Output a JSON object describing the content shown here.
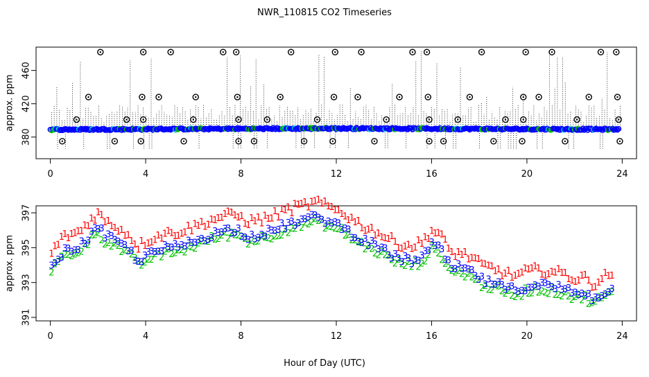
{
  "title": "NWR_110815  CO2 Timeseries",
  "xlabel": "Hour of Day (UTC)",
  "colors": {
    "level1": "#ff0000",
    "level2": "#00c000",
    "level3": "#0000ff",
    "cyan": "#00cccc",
    "ink": "#000000"
  },
  "chart_data": [
    {
      "type": "scatter",
      "title": "",
      "ylabel": "approx. ppm",
      "xlim": [
        -0.6,
        24.6
      ],
      "ylim": [
        354,
        488
      ],
      "xticks": [
        "0",
        "4",
        "8",
        "12",
        "16",
        "20",
        "24"
      ],
      "yticks": [
        "380",
        "420",
        "460"
      ],
      "xtick_values": [
        0,
        4,
        8,
        12,
        16,
        20,
        24
      ],
      "ytick_values": [
        380,
        420,
        460
      ],
      "grid": false,
      "series": [
        {
          "marker": "circle-outline",
          "points": [
            [
              0.5,
              375
            ],
            [
              1.1,
              401
            ],
            [
              1.6,
              428
            ],
            [
              2.1,
              482
            ],
            [
              2.7,
              375
            ],
            [
              3.2,
              401
            ],
            [
              3.8,
              375
            ],
            [
              3.85,
              428
            ],
            [
              3.9,
              401
            ],
            [
              3.9,
              482
            ],
            [
              4.55,
              428
            ],
            [
              5.05,
              482
            ],
            [
              5.6,
              375
            ],
            [
              6.1,
              428
            ],
            [
              6.0,
              401
            ],
            [
              7.25,
              482
            ],
            [
              7.8,
              482
            ],
            [
              7.85,
              428
            ],
            [
              7.9,
              401
            ],
            [
              7.9,
              375
            ],
            [
              8.55,
              375
            ],
            [
              9.1,
              401
            ],
            [
              9.65,
              428
            ],
            [
              10.1,
              482
            ],
            [
              10.65,
              375
            ],
            [
              11.2,
              401
            ],
            [
              11.85,
              375
            ],
            [
              11.9,
              428
            ],
            [
              11.95,
              482
            ],
            [
              12.9,
              428
            ],
            [
              13.05,
              482
            ],
            [
              13.6,
              375
            ],
            [
              14.1,
              401
            ],
            [
              14.65,
              428
            ],
            [
              15.2,
              482
            ],
            [
              15.8,
              482
            ],
            [
              15.85,
              428
            ],
            [
              15.9,
              401
            ],
            [
              15.9,
              375
            ],
            [
              16.5,
              375
            ],
            [
              17.1,
              401
            ],
            [
              17.6,
              428
            ],
            [
              18.1,
              482
            ],
            [
              18.6,
              375
            ],
            [
              19.1,
              401
            ],
            [
              19.8,
              375
            ],
            [
              19.85,
              428
            ],
            [
              19.85,
              401
            ],
            [
              19.95,
              482
            ],
            [
              20.5,
              428
            ],
            [
              21.05,
              482
            ],
            [
              21.6,
              375
            ],
            [
              22.1,
              401
            ],
            [
              22.6,
              428
            ],
            [
              23.1,
              482
            ],
            [
              23.75,
              482
            ],
            [
              23.8,
              428
            ],
            [
              23.85,
              401
            ],
            [
              23.9,
              375
            ]
          ]
        }
      ]
    },
    {
      "type": "scatter",
      "title": "",
      "ylabel": "approx. ppm",
      "xlim": [
        -0.6,
        24.6
      ],
      "ylim": [
        390.8,
        397.4
      ],
      "xticks": [
        "0",
        "4",
        "8",
        "12",
        "16",
        "20",
        "24"
      ],
      "yticks": [
        "391",
        "393",
        "395",
        "397"
      ],
      "xtick_values": [
        0,
        4,
        8,
        12,
        16,
        20,
        24
      ],
      "ytick_values": [
        391,
        393,
        395,
        397
      ],
      "grid": false,
      "series": [
        {
          "marker": "1",
          "color_key": "level1"
        },
        {
          "marker": "2",
          "color_key": "level2"
        },
        {
          "marker": "3",
          "color_key": "level3"
        }
      ],
      "baseline": [
        [
          0.0,
          393.6
        ],
        [
          0.3,
          394.4
        ],
        [
          0.7,
          394.8
        ],
        [
          1.2,
          395.0
        ],
        [
          1.7,
          395.7
        ],
        [
          2.0,
          396.1
        ],
        [
          2.3,
          395.6
        ],
        [
          2.8,
          395.3
        ],
        [
          3.3,
          394.8
        ],
        [
          3.7,
          394.2
        ],
        [
          4.2,
          394.6
        ],
        [
          4.8,
          394.9
        ],
        [
          5.4,
          395.0
        ],
        [
          6.0,
          395.3
        ],
        [
          6.6,
          395.6
        ],
        [
          7.2,
          395.9
        ],
        [
          7.8,
          396.0
        ],
        [
          8.3,
          395.6
        ],
        [
          8.8,
          395.7
        ],
        [
          9.3,
          395.9
        ],
        [
          9.8,
          396.2
        ],
        [
          10.3,
          396.4
        ],
        [
          10.8,
          396.6
        ],
        [
          11.3,
          396.7
        ],
        [
          11.7,
          396.4
        ],
        [
          12.2,
          396.2
        ],
        [
          12.7,
          395.7
        ],
        [
          13.2,
          395.3
        ],
        [
          13.7,
          395.0
        ],
        [
          14.2,
          394.6
        ],
        [
          14.7,
          394.3
        ],
        [
          15.2,
          394.2
        ],
        [
          15.6,
          394.4
        ],
        [
          16.0,
          395.1
        ],
        [
          16.4,
          394.8
        ],
        [
          16.8,
          393.8
        ],
        [
          17.2,
          393.8
        ],
        [
          17.6,
          393.6
        ],
        [
          18.1,
          393.1
        ],
        [
          18.6,
          392.9
        ],
        [
          19.1,
          392.6
        ],
        [
          19.6,
          392.5
        ],
        [
          20.1,
          392.8
        ],
        [
          20.6,
          392.8
        ],
        [
          21.1,
          392.7
        ],
        [
          21.6,
          392.6
        ],
        [
          22.0,
          392.3
        ],
        [
          22.4,
          392.4
        ],
        [
          22.8,
          392.0
        ],
        [
          23.2,
          392.4
        ],
        [
          23.6,
          392.6
        ]
      ]
    }
  ]
}
